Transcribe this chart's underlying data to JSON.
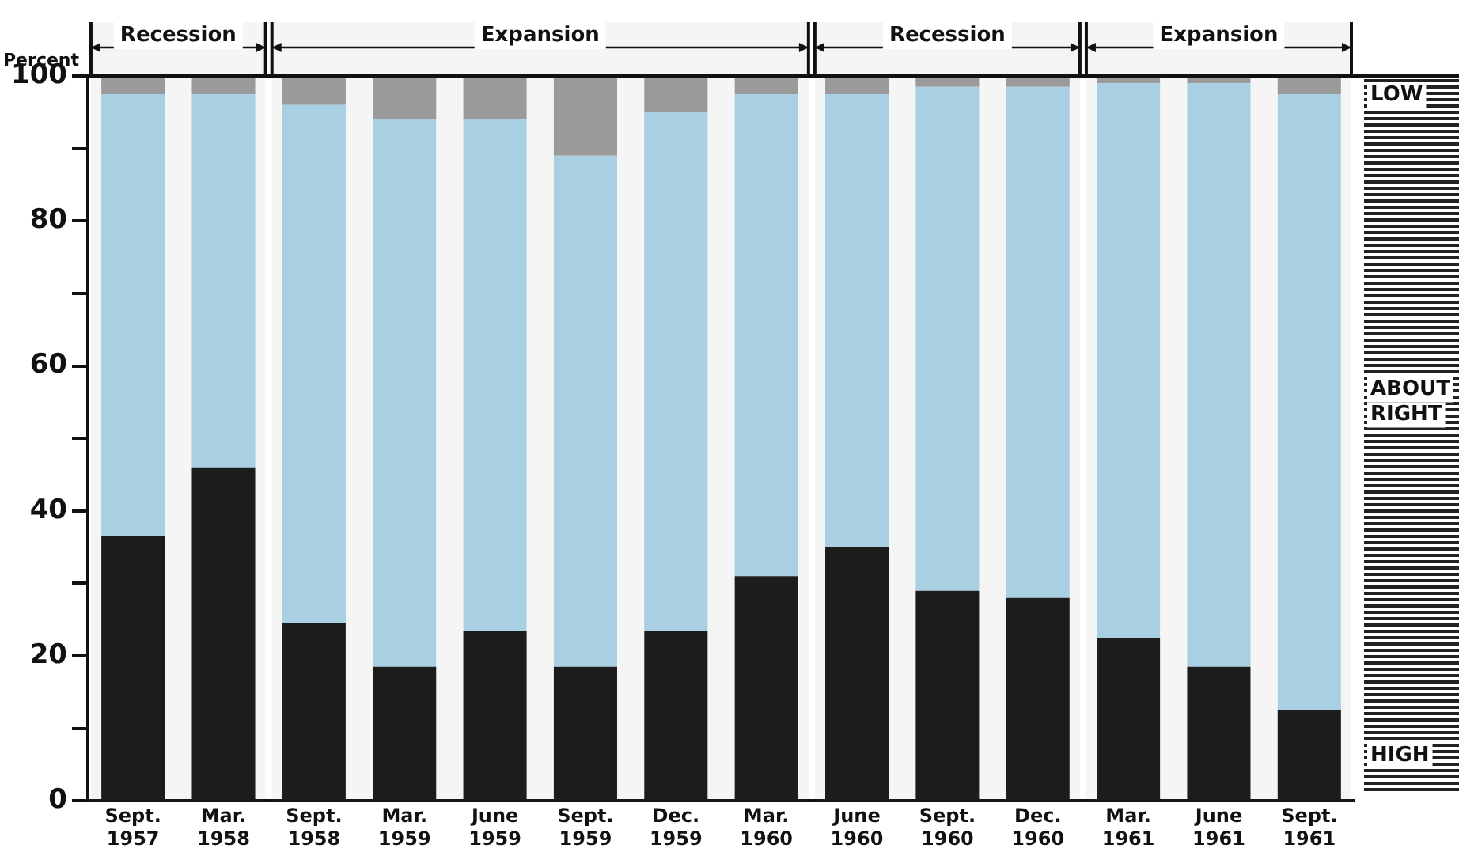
{
  "chart_data": {
    "type": "bar",
    "stacked": true,
    "ylabel": "Percent",
    "categories": [
      "Sept. 1957",
      "Mar. 1958",
      "Sept. 1958",
      "Mar. 1959",
      "June 1959",
      "Sept. 1959",
      "Dec. 1959",
      "Mar. 1960",
      "June 1960",
      "Sept. 1960",
      "Dec. 1960",
      "Mar. 1961",
      "June 1961",
      "Sept. 1961"
    ],
    "series": [
      {
        "name": "HIGH",
        "color": "#1c1c1c",
        "values": [
          36.5,
          46,
          24.5,
          18.5,
          23.5,
          18.5,
          23.5,
          31,
          35,
          29,
          28,
          22.5,
          18.5,
          12.5
        ]
      },
      {
        "name": "ABOUT RIGHT",
        "color": "#a8cfe2",
        "values": [
          61,
          51.5,
          71.5,
          75.5,
          70.5,
          70.5,
          71.5,
          66.5,
          62.5,
          69.5,
          70.5,
          76.5,
          80.5,
          85
        ]
      },
      {
        "name": "LOW",
        "color": "#9a9a9a",
        "values": [
          2.5,
          2.5,
          4,
          6,
          6,
          11,
          5,
          2.5,
          2.5,
          1.5,
          1.5,
          1,
          1,
          2.5
        ]
      }
    ],
    "ylim": [
      0,
      100
    ],
    "yticks": [
      0,
      {
        "value": 10,
        "label": null
      },
      20,
      {
        "value": 30,
        "label": null
      },
      40,
      {
        "value": 50,
        "label": null
      },
      60,
      {
        "value": 70,
        "label": null
      },
      80,
      {
        "value": 90,
        "label": null
      },
      100
    ],
    "bands": [
      {
        "axis": "x",
        "from": "Sept. 1957",
        "to": "Mar. 1958",
        "label": "Recession"
      },
      {
        "axis": "x",
        "from": "Sept. 1958",
        "to": "Mar. 1960",
        "label": "Expansion"
      },
      {
        "axis": "x",
        "from": "June 1960",
        "to": "Dec. 1960",
        "label": "Recession"
      },
      {
        "axis": "x",
        "from": "Mar. 1961",
        "to": "Sept. 1961",
        "label": "Expansion"
      }
    ],
    "grid": false,
    "legend": false
  }
}
